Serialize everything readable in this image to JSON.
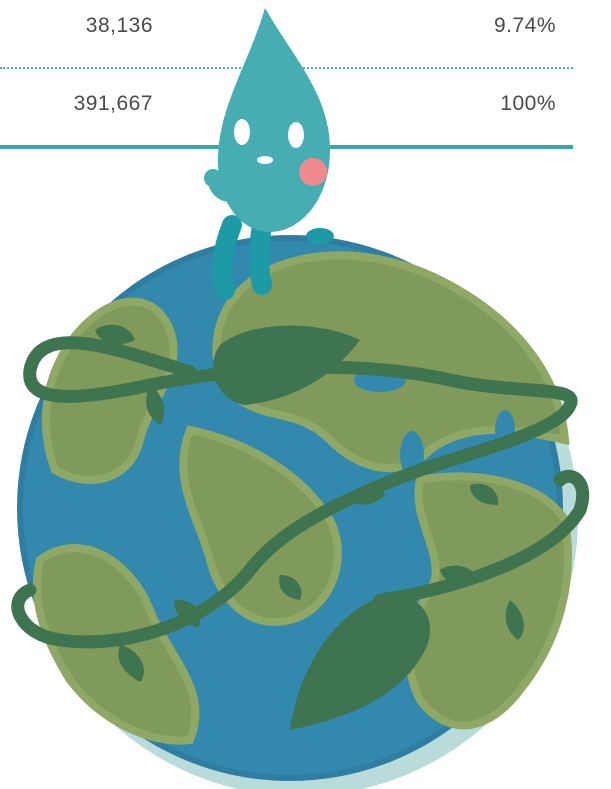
{
  "table": {
    "rows": [
      {
        "count": "38,136",
        "percent": "9.74%"
      },
      {
        "count": "391,667",
        "percent": "100%"
      }
    ]
  },
  "colors": {
    "text": "#4a4a4a",
    "rule": "#3aa6ab",
    "ocean": "#3389ad",
    "land": "#7f9a5a",
    "vine": "#3f7450",
    "droplet": "#46aeb2",
    "cheek": "#f08a8c"
  },
  "illustration": {
    "character": "water-droplet-mascot",
    "object": "globe-wrapped-in-vines"
  }
}
